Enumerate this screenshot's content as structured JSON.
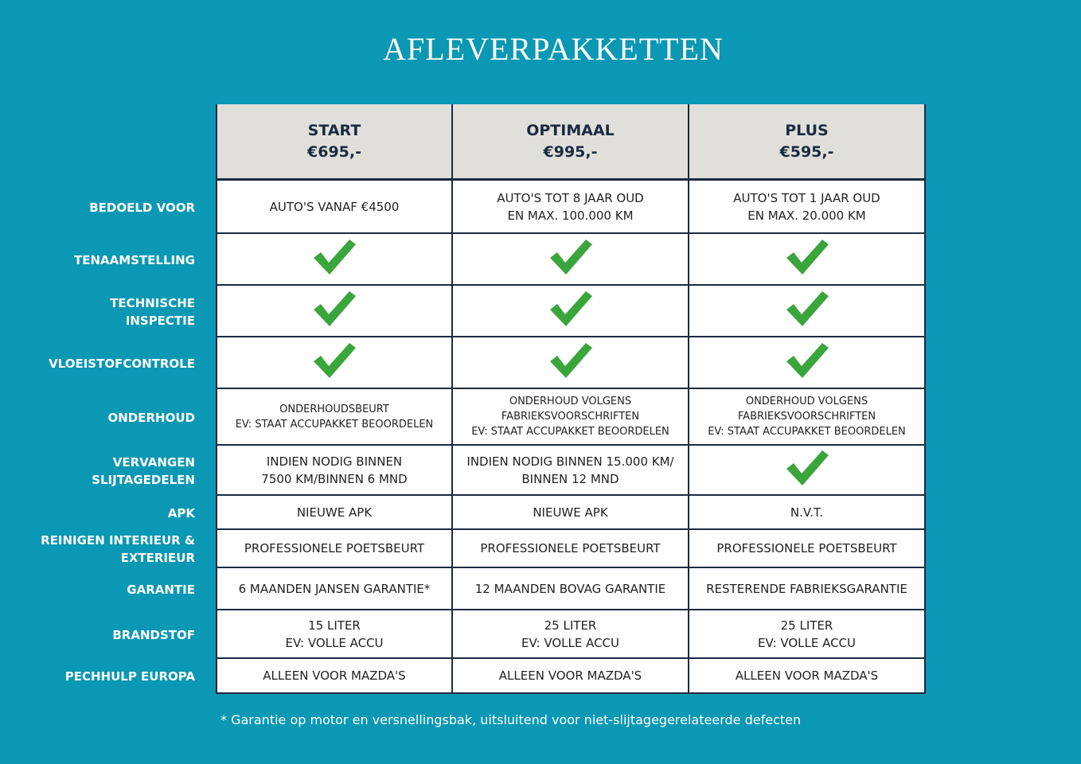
{
  "title": "AFLEVERPAKKETTEN",
  "colors": {
    "background": "#0a98b4",
    "header": "#e0dfdb",
    "border": "#1b2a40",
    "check": "#3aa53a"
  },
  "packages": [
    {
      "name": "START",
      "price": "€695,-"
    },
    {
      "name": "OPTIMAAL",
      "price": "€995,-"
    },
    {
      "name": "PLUS",
      "price": "€595,-"
    }
  ],
  "rows": [
    {
      "label": "BEDOELD VOOR",
      "values": [
        "AUTO'S VANAF €4500",
        "AUTO'S TOT 8 JAAR OUD\nEN MAX. 100.000 KM",
        "AUTO'S TOT 1 JAAR OUD\nEN MAX. 20.000 KM"
      ]
    },
    {
      "label": "TENAAMSTELLING",
      "values": [
        "check-icon",
        "check-icon",
        "check-icon"
      ]
    },
    {
      "label": "TECHNISCHE\nINSPECTIE",
      "values": [
        "check-icon",
        "check-icon",
        "check-icon"
      ]
    },
    {
      "label": "VLOEISTOFCONTROLE",
      "values": [
        "check-icon",
        "check-icon",
        "check-icon"
      ]
    },
    {
      "label": "ONDERHOUD",
      "small": true,
      "values": [
        "ONDERHOUDSBEURT\nEV: STAAT ACCUPAKKET BEOORDELEN",
        "ONDERHOUD VOLGENS\nFABRIEKSVOORSCHRIFTEN\nEV: STAAT ACCUPAKKET BEOORDELEN",
        "ONDERHOUD VOLGENS\nFABRIEKSVOORSCHRIFTEN\nEV: STAAT ACCUPAKKET BEOORDELEN"
      ]
    },
    {
      "label": "VERVANGEN\nSLIJTAGEDELEN",
      "values": [
        "INDIEN NODIG BINNEN\n7500 KM/BINNEN 6 MND",
        "INDIEN NODIG BINNEN 15.000 KM/\nBINNEN 12 MND",
        "check-icon"
      ]
    },
    {
      "label": "APK",
      "values": [
        "NIEUWE APK",
        "NIEUWE APK",
        "N.V.T."
      ]
    },
    {
      "label": "REINIGEN INTERIEUR &\nEXTERIEUR",
      "values": [
        "PROFESSIONELE POETSBEURT",
        "PROFESSIONELE POETSBEURT",
        "PROFESSIONELE POETSBEURT"
      ]
    },
    {
      "label": "GARANTIE",
      "values": [
        "6 MAANDEN JANSEN GARANTIE*",
        "12 MAANDEN BOVAG GARANTIE",
        "RESTERENDE FABRIEKSGARANTIE"
      ]
    },
    {
      "label": "BRANDSTOF",
      "values": [
        "15 LITER\nEV: VOLLE ACCU",
        "25 LITER\nEV: VOLLE ACCU",
        "25 LITER\nEV: VOLLE ACCU"
      ]
    },
    {
      "label": "PECHHULP EUROPA",
      "values": [
        "ALLEEN VOOR MAZDA'S",
        "ALLEEN VOOR MAZDA'S",
        "ALLEEN VOOR MAZDA'S"
      ]
    }
  ],
  "footnote": "* Garantie op motor en versnellingsbak, uitsluitend voor niet-slijtagegerelateerde defecten"
}
